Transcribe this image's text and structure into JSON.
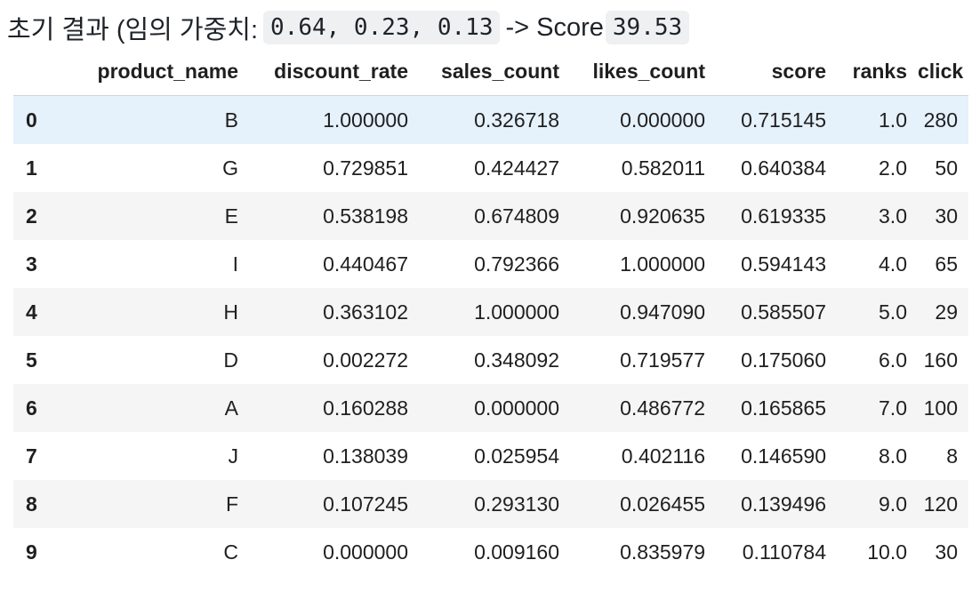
{
  "heading": {
    "prefix": "초기 결과 (임의 가중치:",
    "weights": "0.64, 0.23, 0.13",
    "arrow_label": "-> Score",
    "score": "39.53"
  },
  "table": {
    "columns": [
      "",
      "product_name",
      "discount_rate",
      "sales_count",
      "likes_count",
      "score",
      "ranks",
      "click"
    ],
    "rows": [
      [
        "0",
        "B",
        "1.000000",
        "0.326718",
        "0.000000",
        "0.715145",
        "1.0",
        "280"
      ],
      [
        "1",
        "G",
        "0.729851",
        "0.424427",
        "0.582011",
        "0.640384",
        "2.0",
        "50"
      ],
      [
        "2",
        "E",
        "0.538198",
        "0.674809",
        "0.920635",
        "0.619335",
        "3.0",
        "30"
      ],
      [
        "3",
        "I",
        "0.440467",
        "0.792366",
        "1.000000",
        "0.594143",
        "4.0",
        "65"
      ],
      [
        "4",
        "H",
        "0.363102",
        "1.000000",
        "0.947090",
        "0.585507",
        "5.0",
        "29"
      ],
      [
        "5",
        "D",
        "0.002272",
        "0.348092",
        "0.719577",
        "0.175060",
        "6.0",
        "160"
      ],
      [
        "6",
        "A",
        "0.160288",
        "0.000000",
        "0.486772",
        "0.165865",
        "7.0",
        "100"
      ],
      [
        "7",
        "J",
        "0.138039",
        "0.025954",
        "0.402116",
        "0.146590",
        "8.0",
        "8"
      ],
      [
        "8",
        "F",
        "0.107245",
        "0.293130",
        "0.026455",
        "0.139496",
        "9.0",
        "120"
      ],
      [
        "9",
        "C",
        "0.000000",
        "0.009160",
        "0.835979",
        "0.110784",
        "10.0",
        "30"
      ]
    ]
  },
  "colors": {
    "highlight_row": "#e5f1fb",
    "stripe_row": "#f5f5f5",
    "code_background": "#eef0f2"
  }
}
